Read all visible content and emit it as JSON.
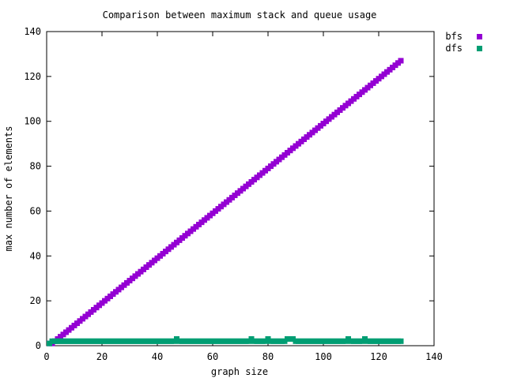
{
  "chart_data": {
    "type": "scatter",
    "title": "Comparison between maximum stack and queue usage",
    "xlabel": "graph size",
    "ylabel": "max number of elements",
    "xlim": [
      0,
      140
    ],
    "ylim": [
      0,
      140
    ],
    "xticks": [
      0,
      20,
      40,
      60,
      80,
      100,
      120,
      140
    ],
    "yticks": [
      0,
      20,
      40,
      60,
      80,
      100,
      120,
      140
    ],
    "grid": false,
    "legend_position": "outside-top-right",
    "series": [
      {
        "name": "bfs",
        "color": "#9400d3",
        "marker": "filled-square",
        "x_start": 1,
        "x_end": 128,
        "x_step": 1,
        "relation": "y = x - 1",
        "exceptions": [
          {
            "x": 1,
            "y": 1
          }
        ]
      },
      {
        "name": "dfs",
        "color": "#009e73",
        "marker": "filled-square",
        "x_start": 1,
        "x_end": 128,
        "x_step": 1,
        "default_y": 2,
        "exceptions": [
          {
            "x": 1,
            "y": 1
          },
          {
            "x": 47,
            "y": 3
          },
          {
            "x": 74,
            "y": 3
          },
          {
            "x": 80,
            "y": 3
          },
          {
            "x": 87,
            "y": 3
          },
          {
            "x": 88,
            "y": 3
          },
          {
            "x": 89,
            "y": 3
          },
          {
            "x": 109,
            "y": 3
          },
          {
            "x": 115,
            "y": 3
          }
        ]
      }
    ]
  }
}
